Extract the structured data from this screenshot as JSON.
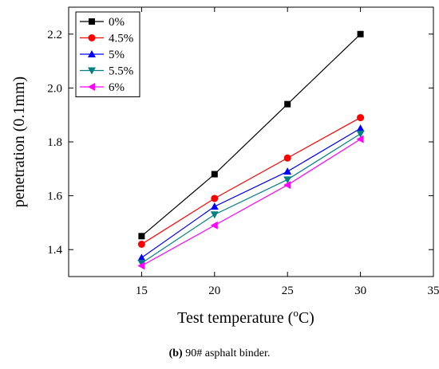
{
  "chart_data": {
    "type": "line",
    "xlabel_text": "Test temperature (",
    "xlabel_sup": "o",
    "xlabel_unit": "C)",
    "ylabel": "penetration (0.1mm)",
    "xlim": [
      10,
      35
    ],
    "ylim": [
      1.3,
      2.3
    ],
    "x_ticks": [
      15,
      20,
      25,
      30,
      35
    ],
    "y_ticks": [
      1.4,
      1.6,
      1.8,
      2.0,
      2.2
    ],
    "legend_position": "top-left",
    "x": [
      15,
      20,
      25,
      30
    ],
    "series": [
      {
        "name": "0%",
        "color": "#000000",
        "marker": "square",
        "values": [
          1.45,
          1.68,
          1.94,
          2.2
        ]
      },
      {
        "name": "4.5%",
        "color": "#ff0000",
        "marker": "circle",
        "values": [
          1.42,
          1.59,
          1.74,
          1.89
        ]
      },
      {
        "name": "5%",
        "color": "#0000ff",
        "marker": "triangle-up",
        "values": [
          1.37,
          1.56,
          1.69,
          1.85
        ]
      },
      {
        "name": "5.5%",
        "color": "#008080",
        "marker": "triangle-down",
        "values": [
          1.35,
          1.53,
          1.66,
          1.83
        ]
      },
      {
        "name": "6%",
        "color": "#ff00ff",
        "marker": "triangle-left",
        "values": [
          1.34,
          1.49,
          1.64,
          1.81
        ]
      }
    ]
  },
  "caption": {
    "label": "(b)",
    "text": " 90# asphalt binder."
  }
}
